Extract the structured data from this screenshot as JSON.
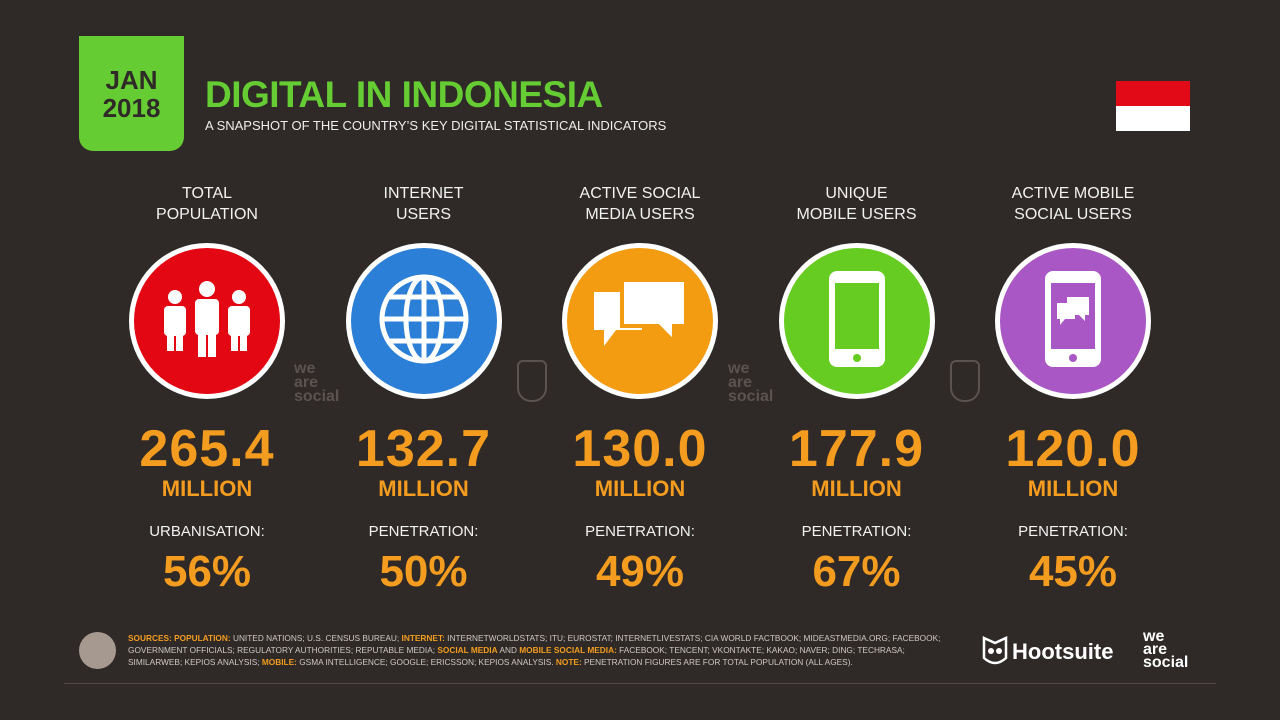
{
  "header": {
    "month": "JAN",
    "year": "2018",
    "title": "DIGITAL IN INDONESIA",
    "subtitle": "A SNAPSHOT OF THE COUNTRY’S KEY DIGITAL STATISTICAL INDICATORS",
    "flag_colors": [
      "#e30a17",
      "#ffffff"
    ]
  },
  "stats": [
    {
      "label1": "TOTAL",
      "label2": "POPULATION",
      "icon": "people-icon",
      "color": "#e30613",
      "value": "265.4",
      "unit": "MILLION",
      "sub_label": "URBANISATION:",
      "sub_value": "56%"
    },
    {
      "label1": "INTERNET",
      "label2": "USERS",
      "icon": "globe-icon",
      "color": "#2b7fd6",
      "value": "132.7",
      "unit": "MILLION",
      "sub_label": "PENETRATION:",
      "sub_value": "50%"
    },
    {
      "label1": "ACTIVE SOCIAL",
      "label2": "MEDIA USERS",
      "icon": "chat-bubbles-icon",
      "color": "#f39c12",
      "value": "130.0",
      "unit": "MILLION",
      "sub_label": "PENETRATION:",
      "sub_value": "49%"
    },
    {
      "label1": "UNIQUE",
      "label2": "MOBILE USERS",
      "icon": "mobile-phone-icon",
      "color": "#66cc22",
      "value": "177.9",
      "unit": "MILLION",
      "sub_label": "PENETRATION:",
      "sub_value": "67%"
    },
    {
      "label1": "ACTIVE MOBILE",
      "label2": "SOCIAL USERS",
      "icon": "mobile-chat-icon",
      "color": "#a957c4",
      "value": "120.0",
      "unit": "MILLION",
      "sub_label": "PENETRATION:",
      "sub_value": "45%"
    }
  ],
  "watermark": "we are social",
  "footer": {
    "sources_parts": [
      {
        "h": true,
        "t": "SOURCES: POPULATION:"
      },
      {
        "h": false,
        "t": " UNITED NATIONS; U.S. CENSUS BUREAU; "
      },
      {
        "h": true,
        "t": "INTERNET:"
      },
      {
        "h": false,
        "t": " INTERNETWORLDSTATS; ITU; EUROSTAT; INTERNETLIVESTATS; CIA WORLD FACTBOOK; MIDEASTMEDIA.ORG; FACEBOOK; GOVERNMENT OFFICIALS; REGULATORY AUTHORITIES; REPUTABLE MEDIA; "
      },
      {
        "h": true,
        "t": "SOCIAL MEDIA"
      },
      {
        "h": false,
        "t": " AND "
      },
      {
        "h": true,
        "t": "MOBILE SOCIAL MEDIA:"
      },
      {
        "h": false,
        "t": " FACEBOOK; TENCENT; VKONTAKTE; KAKAO; NAVER; DING; TECHRASA; SIMILARWEB; KEPIOS ANALYSIS; "
      },
      {
        "h": true,
        "t": "MOBILE:"
      },
      {
        "h": false,
        "t": " GSMA INTELLIGENCE; GOOGLE; ERICSSON; KEPIOS ANALYSIS. "
      },
      {
        "h": true,
        "t": "NOTE:"
      },
      {
        "h": false,
        "t": " PENETRATION FIGURES ARE FOR TOTAL POPULATION (ALL AGES)."
      }
    ],
    "hootsuite": "Hootsuite",
    "we_are_social": [
      "we",
      "are",
      "social"
    ]
  }
}
